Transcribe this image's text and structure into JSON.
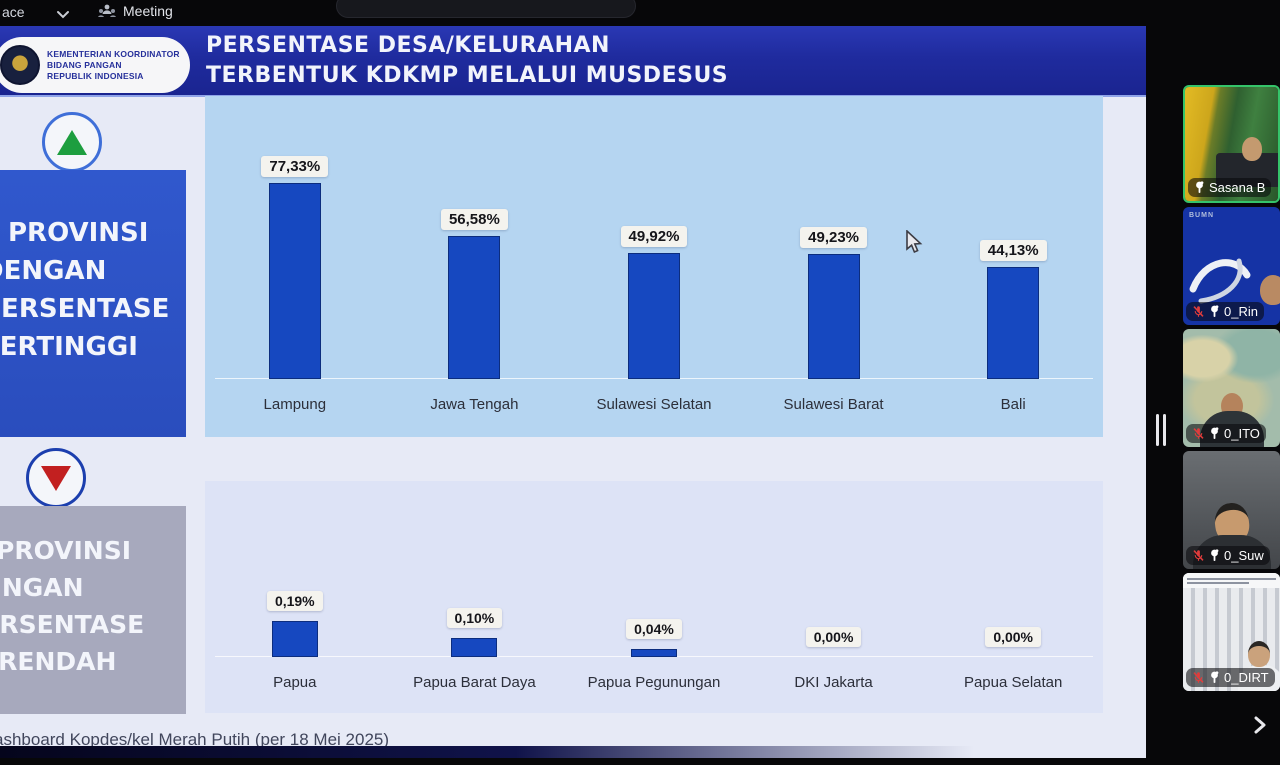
{
  "meeting_bar": {
    "workspace_label": "ace",
    "meeting_label": "Meeting"
  },
  "slide": {
    "logo_lines": [
      "KEMENTERIAN KOORDINATOR",
      "BIDANG PANGAN",
      "REPUBLIK INDONESIA"
    ],
    "title_line1": "PERSENTASE DESA/KELURAHAN",
    "title_line2": "TERBENTUK KDKMP MELALUI MUSDESUS",
    "footer": "ashboard Kopdes/kel Merah Putih (per 18 Mei 2025)"
  },
  "chart_data": [
    {
      "type": "bar",
      "title": "PROVINSI DENGAN PERSENTASE TERTINGGI",
      "title_lines": [
        "PROVINSI",
        "DENGAN",
        "PERSENTASE",
        "TERTINGGI"
      ],
      "indicator": "up",
      "categories": [
        "Lampung",
        "Jawa Tengah",
        "Sulawesi Selatan",
        "Sulawesi Barat",
        "Bali"
      ],
      "values": [
        77.33,
        56.58,
        49.92,
        49.23,
        44.13
      ],
      "value_labels": [
        "77,33%",
        "56,58%",
        "49,92%",
        "49,23%",
        "44,13%"
      ],
      "ylim": [
        0,
        100
      ],
      "bar_color": "#1648c0",
      "grid": false,
      "legend": false
    },
    {
      "type": "bar",
      "title": "PROVINSI DENGAN PERSENTASE TERENDAH",
      "title_lines": [
        "PROVINSI",
        "DENGAN",
        "PERSENTASE",
        "TERENDAH"
      ],
      "indicator": "down",
      "categories": [
        "Papua",
        "Papua Barat Daya",
        "Papua Pegunungan",
        "DKI Jakarta",
        "Papua Selatan"
      ],
      "values": [
        0.19,
        0.1,
        0.04,
        0.0,
        0.0
      ],
      "value_labels": [
        "0,19%",
        "0,10%",
        "0,04%",
        "0,00%",
        "0,00%"
      ],
      "ylim": [
        0,
        0.2
      ],
      "bar_color": "#1648c0",
      "grid": false,
      "legend": false
    }
  ],
  "sidebar": {
    "watermark": "BUMN",
    "participants": [
      {
        "name": "Sasana B",
        "muted": false,
        "pinned": true,
        "active_speaker": true
      },
      {
        "name": "0_Rin",
        "muted": true,
        "pinned": true,
        "active_speaker": false
      },
      {
        "name": "0_ITO",
        "muted": true,
        "pinned": true,
        "active_speaker": false
      },
      {
        "name": "0_Suw",
        "muted": true,
        "pinned": true,
        "active_speaker": false
      },
      {
        "name": "0_DIRT",
        "muted": true,
        "pinned": true,
        "active_speaker": false
      }
    ]
  },
  "colors": {
    "header_band": "#1f2b9e",
    "bar": "#1648c0",
    "chart_panel_high": "#b5d5f1",
    "high_indicator": "#1d9e3f",
    "low_indicator": "#c22020",
    "active_speaker_border": "#35c46a",
    "muted_mic": "#e03c3c"
  }
}
